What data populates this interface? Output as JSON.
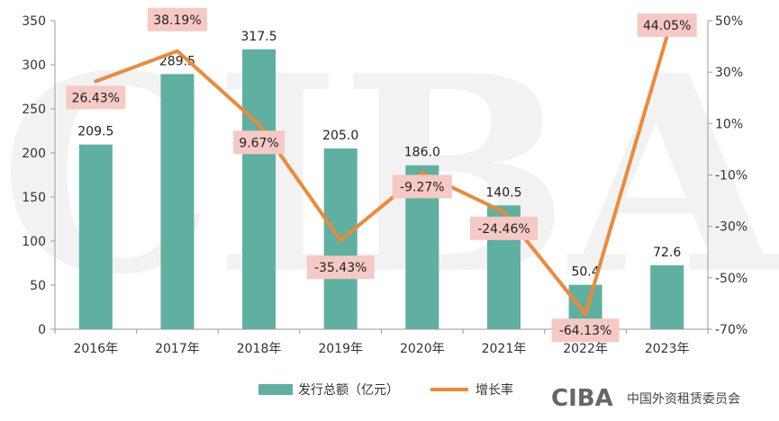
{
  "chart_data": {
    "type": "bar+line",
    "categories": [
      "2016年",
      "2017年",
      "2018年",
      "2019年",
      "2020年",
      "2021年",
      "2022年",
      "2023年"
    ],
    "series": [
      {
        "name": "发行总额（亿元）",
        "type": "bar",
        "axis": "left",
        "color": "#5fb0a0",
        "values": [
          209.5,
          289.5,
          317.5,
          205.0,
          186.0,
          140.5,
          50.4,
          72.6
        ],
        "labels": [
          "209.5",
          "289.5",
          "317.5",
          "205.0",
          "186.0",
          "140.5",
          "50.4",
          "72.6"
        ]
      },
      {
        "name": "增长率",
        "type": "line",
        "axis": "right",
        "color": "#ec8a3b",
        "values": [
          26.43,
          38.19,
          9.67,
          -35.43,
          -9.27,
          -24.46,
          -64.13,
          44.05
        ],
        "labels": [
          "26.43%",
          "38.19%",
          "9.67%",
          "-35.43%",
          "-9.27%",
          "-24.46%",
          "-64.13%",
          "44.05%"
        ]
      }
    ],
    "y_left": {
      "ylim": [
        0,
        350
      ],
      "ticks": [
        "0",
        "50",
        "100",
        "150",
        "200",
        "250",
        "300",
        "350"
      ]
    },
    "y_right": {
      "ylim": [
        -70,
        50
      ],
      "ticks": [
        "-70%",
        "-50%",
        "-30%",
        "-10%",
        "10%",
        "30%",
        "50%"
      ]
    },
    "legend_position": "bottom-center",
    "grid": false
  },
  "branding": {
    "logo_mark": "CIBA",
    "logo_text": "中国外资租赁委员会",
    "watermark": "CIBA"
  },
  "colors": {
    "bar": "#5fb0a0",
    "line": "#ec8a3b",
    "label_bg": "#f6c9c4",
    "axis": "#999999"
  }
}
